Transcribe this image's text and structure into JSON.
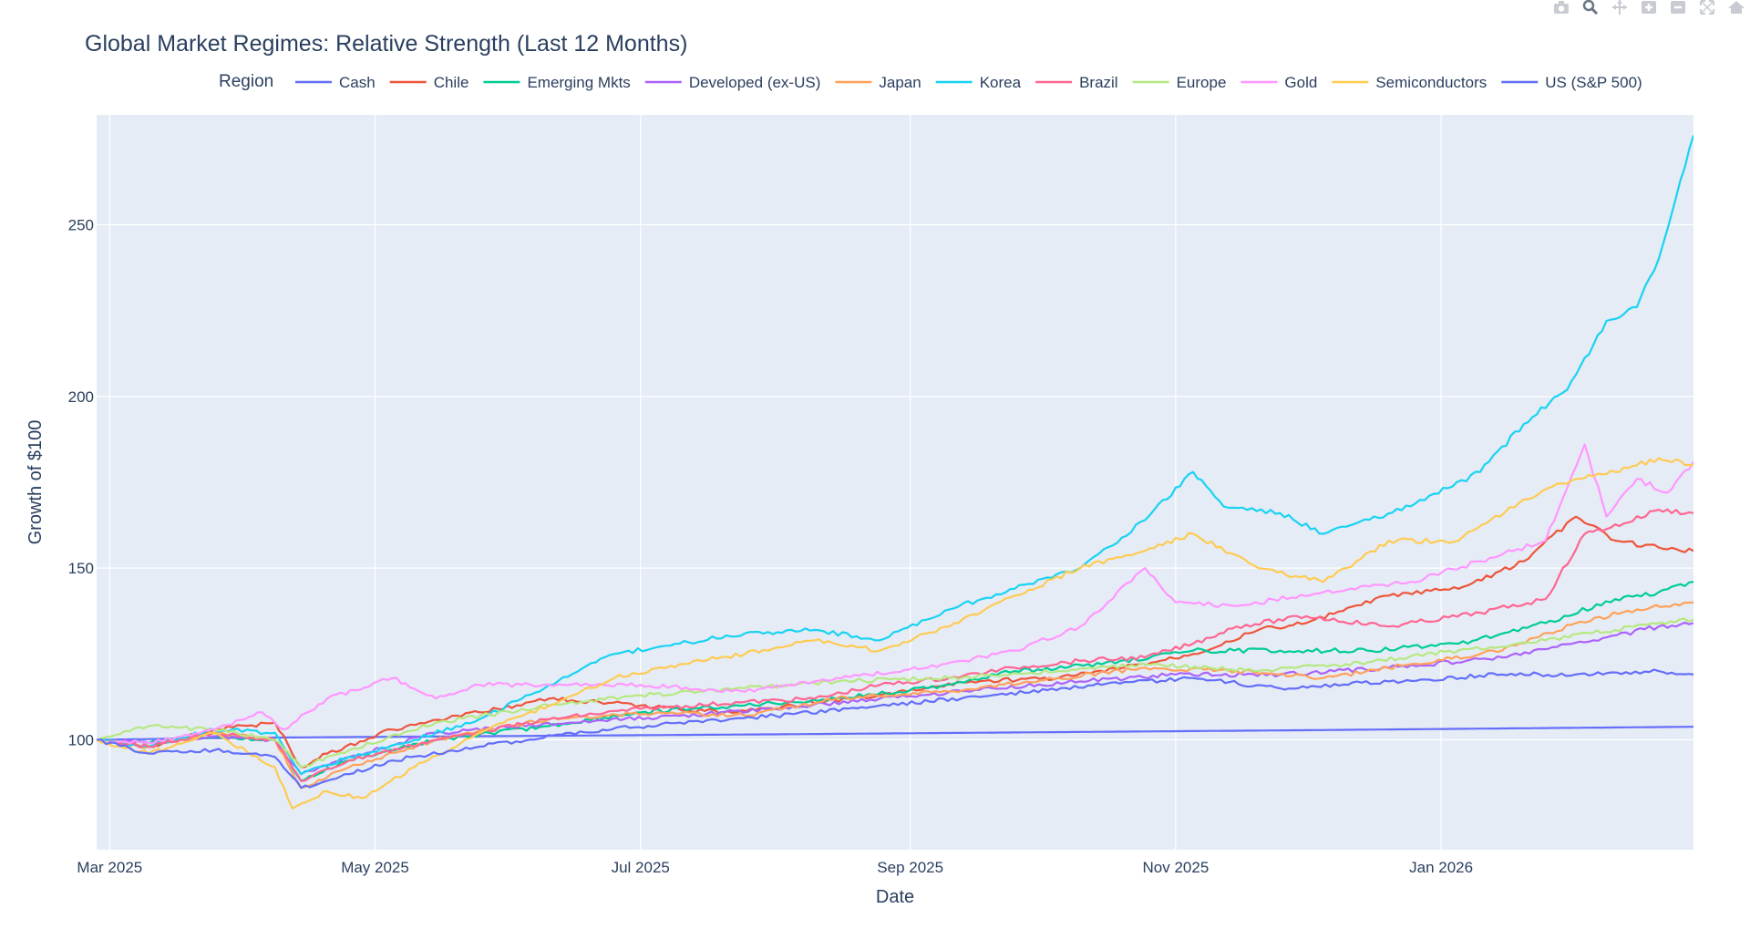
{
  "colors": {
    "plot_bg": "#e5ecf6",
    "grid": "#ffffff",
    "text": "#2a3f5f",
    "modebar_icon": "#c8ccd2",
    "modebar_active": "#6b7684"
  },
  "modebar": {
    "icons": [
      "camera-icon",
      "zoom-icon",
      "pan-icon",
      "zoom-in-icon",
      "zoom-out-icon",
      "autoscale-icon",
      "reset-axes-icon"
    ]
  },
  "chart_data": {
    "type": "line",
    "title": "Global Market Regimes: Relative Strength (Last 12 Months)",
    "xlabel": "Date",
    "ylabel": "Growth of $100",
    "legend_title": "Region",
    "legend_position": "top",
    "grid": true,
    "x_range": [
      "2025-02-26",
      "2026-02-28"
    ],
    "ylim": [
      68,
      282
    ],
    "x_ticks": [
      {
        "date": "2025-03-01",
        "label": "Mar 2025"
      },
      {
        "date": "2025-05-01",
        "label": "May 2025"
      },
      {
        "date": "2025-07-01",
        "label": "Jul 2025"
      },
      {
        "date": "2025-09-01",
        "label": "Sep 2025"
      },
      {
        "date": "2025-11-01",
        "label": "Nov 2025"
      },
      {
        "date": "2026-01-01",
        "label": "Jan 2026"
      }
    ],
    "y_ticks": [
      100,
      150,
      200,
      250
    ],
    "series": [
      {
        "name": "Cash",
        "color": "#636efa",
        "points": [
          [
            "2025-02-26",
            100
          ],
          [
            "2025-04-01",
            100.6
          ],
          [
            "2025-06-01",
            101.1
          ],
          [
            "2025-08-01",
            101.6
          ],
          [
            "2025-10-01",
            102.2
          ],
          [
            "2025-12-01",
            102.8
          ],
          [
            "2026-02-28",
            103.8
          ]
        ]
      },
      {
        "name": "Chile",
        "color": "#EF553B",
        "points": [
          [
            "2025-02-26",
            100
          ],
          [
            "2025-03-10",
            98
          ],
          [
            "2025-03-25",
            103
          ],
          [
            "2025-04-08",
            105
          ],
          [
            "2025-04-14",
            92
          ],
          [
            "2025-04-20",
            96
          ],
          [
            "2025-05-05",
            103
          ],
          [
            "2025-05-25",
            108
          ],
          [
            "2025-06-10",
            112
          ],
          [
            "2025-07-01",
            110
          ],
          [
            "2025-07-20",
            108
          ],
          [
            "2025-08-05",
            110
          ],
          [
            "2025-08-25",
            113
          ],
          [
            "2025-09-15",
            117
          ],
          [
            "2025-10-05",
            118
          ],
          [
            "2025-10-20",
            121
          ],
          [
            "2025-11-05",
            125
          ],
          [
            "2025-11-20",
            132
          ],
          [
            "2025-12-01",
            134
          ],
          [
            "2025-12-20",
            142
          ],
          [
            "2026-01-05",
            144
          ],
          [
            "2026-01-20",
            152
          ],
          [
            "2026-02-01",
            165
          ],
          [
            "2026-02-10",
            158
          ],
          [
            "2026-02-20",
            156
          ],
          [
            "2026-02-28",
            155
          ]
        ]
      },
      {
        "name": "Emerging Mkts",
        "color": "#00cc96",
        "points": [
          [
            "2025-02-26",
            100
          ],
          [
            "2025-03-10",
            99
          ],
          [
            "2025-03-25",
            101
          ],
          [
            "2025-04-08",
            100
          ],
          [
            "2025-04-14",
            88
          ],
          [
            "2025-04-25",
            94
          ],
          [
            "2025-05-15",
            100
          ],
          [
            "2025-06-10",
            104
          ],
          [
            "2025-07-01",
            108
          ],
          [
            "2025-07-25",
            110
          ],
          [
            "2025-08-15",
            112
          ],
          [
            "2025-09-05",
            115
          ],
          [
            "2025-09-25",
            120
          ],
          [
            "2025-10-15",
            122
          ],
          [
            "2025-11-05",
            126
          ],
          [
            "2025-11-25",
            126
          ],
          [
            "2025-12-15",
            126
          ],
          [
            "2026-01-05",
            128
          ],
          [
            "2026-01-25",
            134
          ],
          [
            "2026-02-10",
            141
          ],
          [
            "2026-02-20",
            143
          ],
          [
            "2026-02-28",
            146
          ]
        ]
      },
      {
        "name": "Developed (ex-US)",
        "color": "#ab63fa",
        "points": [
          [
            "2025-02-26",
            100
          ],
          [
            "2025-03-10",
            99
          ],
          [
            "2025-03-25",
            101
          ],
          [
            "2025-04-08",
            100
          ],
          [
            "2025-04-14",
            90
          ],
          [
            "2025-04-25",
            95
          ],
          [
            "2025-05-15",
            102
          ],
          [
            "2025-06-15",
            105
          ],
          [
            "2025-07-10",
            107
          ],
          [
            "2025-08-01",
            109
          ],
          [
            "2025-08-25",
            112
          ],
          [
            "2025-09-20",
            115
          ],
          [
            "2025-10-10",
            117
          ],
          [
            "2025-11-01",
            119
          ],
          [
            "2025-11-25",
            119
          ],
          [
            "2025-12-20",
            121
          ],
          [
            "2026-01-15",
            124
          ],
          [
            "2026-02-05",
            129
          ],
          [
            "2026-02-20",
            133
          ],
          [
            "2026-02-28",
            134
          ]
        ]
      },
      {
        "name": "Japan",
        "color": "#FFA15A",
        "points": [
          [
            "2025-02-26",
            100
          ],
          [
            "2025-03-10",
            98
          ],
          [
            "2025-03-25",
            102
          ],
          [
            "2025-04-08",
            100
          ],
          [
            "2025-04-14",
            86
          ],
          [
            "2025-04-25",
            92
          ],
          [
            "2025-05-15",
            100
          ],
          [
            "2025-06-10",
            106
          ],
          [
            "2025-07-05",
            108
          ],
          [
            "2025-07-25",
            107
          ],
          [
            "2025-08-15",
            112
          ],
          [
            "2025-09-10",
            114
          ],
          [
            "2025-10-05",
            118
          ],
          [
            "2025-10-25",
            121
          ],
          [
            "2025-11-15",
            120
          ],
          [
            "2025-12-05",
            118
          ],
          [
            "2025-12-25",
            122
          ],
          [
            "2026-01-15",
            126
          ],
          [
            "2026-02-01",
            134
          ],
          [
            "2026-02-15",
            138
          ],
          [
            "2026-02-28",
            140
          ]
        ]
      },
      {
        "name": "Korea",
        "color": "#19d3f3",
        "points": [
          [
            "2025-02-26",
            100
          ],
          [
            "2025-03-10",
            98
          ],
          [
            "2025-03-25",
            103
          ],
          [
            "2025-04-08",
            102
          ],
          [
            "2025-04-14",
            90
          ],
          [
            "2025-04-25",
            95
          ],
          [
            "2025-05-10",
            100
          ],
          [
            "2025-05-25",
            106
          ],
          [
            "2025-06-10",
            116
          ],
          [
            "2025-06-25",
            125
          ],
          [
            "2025-07-10",
            128
          ],
          [
            "2025-07-25",
            131
          ],
          [
            "2025-08-10",
            132
          ],
          [
            "2025-08-25",
            129
          ],
          [
            "2025-09-10",
            138
          ],
          [
            "2025-09-25",
            144
          ],
          [
            "2025-10-10",
            150
          ],
          [
            "2025-10-25",
            164
          ],
          [
            "2025-11-05",
            178
          ],
          [
            "2025-11-12",
            168
          ],
          [
            "2025-11-25",
            166
          ],
          [
            "2025-12-05",
            160
          ],
          [
            "2025-12-25",
            168
          ],
          [
            "2026-01-10",
            178
          ],
          [
            "2026-01-20",
            192
          ],
          [
            "2026-01-30",
            202
          ],
          [
            "2026-02-08",
            222
          ],
          [
            "2026-02-15",
            226
          ],
          [
            "2026-02-20",
            240
          ],
          [
            "2026-02-24",
            258
          ],
          [
            "2026-02-28",
            276
          ]
        ]
      },
      {
        "name": "Brazil",
        "color": "#FF6692",
        "points": [
          [
            "2025-02-26",
            100
          ],
          [
            "2025-03-10",
            98
          ],
          [
            "2025-03-25",
            102
          ],
          [
            "2025-04-08",
            100
          ],
          [
            "2025-04-14",
            88
          ],
          [
            "2025-04-25",
            94
          ],
          [
            "2025-05-15",
            100
          ],
          [
            "2025-06-10",
            106
          ],
          [
            "2025-07-01",
            109
          ],
          [
            "2025-07-25",
            111
          ],
          [
            "2025-08-10",
            112
          ],
          [
            "2025-08-25",
            116
          ],
          [
            "2025-09-10",
            118
          ],
          [
            "2025-09-25",
            121
          ],
          [
            "2025-10-10",
            123
          ],
          [
            "2025-10-25",
            124
          ],
          [
            "2025-11-05",
            128
          ],
          [
            "2025-11-15",
            133
          ],
          [
            "2025-12-01",
            136
          ],
          [
            "2025-12-20",
            133
          ],
          [
            "2026-01-10",
            137
          ],
          [
            "2026-01-25",
            141
          ],
          [
            "2026-02-03",
            160
          ],
          [
            "2026-02-12",
            163
          ],
          [
            "2026-02-20",
            167
          ],
          [
            "2026-02-28",
            166
          ]
        ]
      },
      {
        "name": "Europe",
        "color": "#B6E880",
        "points": [
          [
            "2025-02-26",
            100
          ],
          [
            "2025-03-10",
            104
          ],
          [
            "2025-03-25",
            103
          ],
          [
            "2025-04-08",
            100
          ],
          [
            "2025-04-14",
            92
          ],
          [
            "2025-04-25",
            97
          ],
          [
            "2025-05-15",
            105
          ],
          [
            "2025-06-10",
            110
          ],
          [
            "2025-07-01",
            113
          ],
          [
            "2025-07-25",
            115
          ],
          [
            "2025-08-15",
            117
          ],
          [
            "2025-09-10",
            118
          ],
          [
            "2025-10-05",
            120
          ],
          [
            "2025-10-25",
            122
          ],
          [
            "2025-11-20",
            120
          ],
          [
            "2025-12-10",
            122
          ],
          [
            "2026-01-05",
            126
          ],
          [
            "2026-01-25",
            129
          ],
          [
            "2026-02-10",
            132
          ],
          [
            "2026-02-28",
            135
          ]
        ]
      },
      {
        "name": "Gold",
        "color": "#FF97FF",
        "points": [
          [
            "2025-02-26",
            100
          ],
          [
            "2025-03-10",
            99
          ],
          [
            "2025-03-25",
            103
          ],
          [
            "2025-04-05",
            108
          ],
          [
            "2025-04-10",
            103
          ],
          [
            "2025-04-20",
            112
          ],
          [
            "2025-05-05",
            118
          ],
          [
            "2025-05-15",
            112
          ],
          [
            "2025-05-25",
            116
          ],
          [
            "2025-06-10",
            116
          ],
          [
            "2025-07-01",
            116
          ],
          [
            "2025-07-25",
            114
          ],
          [
            "2025-08-15",
            118
          ],
          [
            "2025-09-05",
            121
          ],
          [
            "2025-09-25",
            126
          ],
          [
            "2025-10-10",
            133
          ],
          [
            "2025-10-25",
            150
          ],
          [
            "2025-11-01",
            140
          ],
          [
            "2025-11-15",
            139
          ],
          [
            "2025-12-05",
            143
          ],
          [
            "2025-12-25",
            146
          ],
          [
            "2026-01-10",
            152
          ],
          [
            "2026-01-25",
            158
          ],
          [
            "2026-02-03",
            186
          ],
          [
            "2026-02-08",
            165
          ],
          [
            "2026-02-15",
            176
          ],
          [
            "2026-02-22",
            172
          ],
          [
            "2026-02-28",
            181
          ]
        ]
      },
      {
        "name": "Semiconductors",
        "color": "#FECB52",
        "points": [
          [
            "2025-02-26",
            100
          ],
          [
            "2025-03-10",
            96
          ],
          [
            "2025-03-25",
            102
          ],
          [
            "2025-04-08",
            92
          ],
          [
            "2025-04-12",
            80
          ],
          [
            "2025-04-20",
            85
          ],
          [
            "2025-04-28",
            83
          ],
          [
            "2025-05-10",
            92
          ],
          [
            "2025-05-25",
            102
          ],
          [
            "2025-06-10",
            110
          ],
          [
            "2025-06-25",
            118
          ],
          [
            "2025-07-10",
            122
          ],
          [
            "2025-07-25",
            125
          ],
          [
            "2025-08-10",
            129
          ],
          [
            "2025-08-25",
            126
          ],
          [
            "2025-09-10",
            133
          ],
          [
            "2025-09-25",
            142
          ],
          [
            "2025-10-10",
            150
          ],
          [
            "2025-10-25",
            155
          ],
          [
            "2025-11-05",
            160
          ],
          [
            "2025-11-20",
            150
          ],
          [
            "2025-12-05",
            146
          ],
          [
            "2025-12-20",
            158
          ],
          [
            "2026-01-05",
            158
          ],
          [
            "2026-01-20",
            170
          ],
          [
            "2026-02-01",
            176
          ],
          [
            "2026-02-10",
            178
          ],
          [
            "2026-02-20",
            182
          ],
          [
            "2026-02-28",
            180
          ]
        ]
      },
      {
        "name": "US (S&P 500)",
        "color": "#636efa",
        "points": [
          [
            "2025-02-26",
            100
          ],
          [
            "2025-03-10",
            96
          ],
          [
            "2025-03-25",
            97
          ],
          [
            "2025-04-08",
            95
          ],
          [
            "2025-04-14",
            86
          ],
          [
            "2025-04-25",
            90
          ],
          [
            "2025-05-05",
            94
          ],
          [
            "2025-05-25",
            98
          ],
          [
            "2025-06-15",
            102
          ],
          [
            "2025-07-10",
            105
          ],
          [
            "2025-08-01",
            107
          ],
          [
            "2025-08-25",
            110
          ],
          [
            "2025-09-20",
            113
          ],
          [
            "2025-10-15",
            116
          ],
          [
            "2025-11-05",
            118
          ],
          [
            "2025-11-25",
            115
          ],
          [
            "2025-12-20",
            117
          ],
          [
            "2026-01-15",
            119
          ],
          [
            "2026-02-05",
            119
          ],
          [
            "2026-02-20",
            120
          ],
          [
            "2026-02-28",
            119
          ]
        ]
      }
    ]
  }
}
